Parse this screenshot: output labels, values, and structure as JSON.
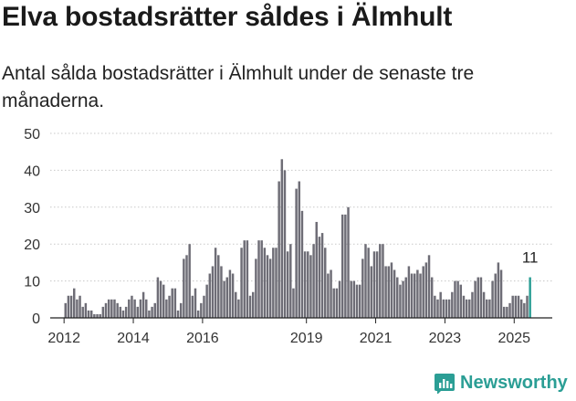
{
  "title": "Elva bostadsrätter såldes i Älmhult",
  "subtitle": "Antal sålda bostadsrätter i Älmhult under de senaste tre månaderna.",
  "brand": {
    "name": "Newsworthy",
    "icon": "newsworthy-logo-icon",
    "color": "#2b9e95"
  },
  "chart_data": {
    "type": "bar",
    "title": "",
    "xlabel": "",
    "ylabel": "",
    "ylim": [
      0,
      50
    ],
    "yticks": [
      0,
      10,
      20,
      30,
      40,
      50
    ],
    "xlim": [
      2011.6,
      2026.1
    ],
    "xticks": [
      2012,
      2014,
      2016,
      2019,
      2021,
      2023,
      2025
    ],
    "grid": "horizontal dotted",
    "bar_color": "#6e6d76",
    "highlight_color": "#2b9e95",
    "start": "2012-01",
    "values": [
      4,
      6,
      6,
      8,
      5,
      6,
      3,
      4,
      2,
      2,
      1,
      1,
      1,
      3,
      4,
      5,
      5,
      5,
      4,
      3,
      2,
      3,
      5,
      6,
      5,
      3,
      5,
      7,
      5,
      2,
      3,
      4,
      11,
      10,
      9,
      5,
      6,
      8,
      8,
      2,
      4,
      16,
      17,
      20,
      6,
      8,
      2,
      4,
      6,
      9,
      12,
      14,
      19,
      17,
      14,
      10,
      11,
      13,
      12,
      7,
      5,
      19,
      21,
      21,
      6,
      7,
      16,
      21,
      21,
      19,
      17,
      16,
      19,
      19,
      37,
      43,
      40,
      18,
      20,
      8,
      35,
      37,
      29,
      18,
      18,
      17,
      20,
      26,
      22,
      23,
      19,
      12,
      13,
      8,
      8,
      10,
      28,
      28,
      30,
      10,
      10,
      9,
      9,
      16,
      20,
      19,
      14,
      18,
      18,
      20,
      20,
      14,
      14,
      15,
      13,
      11,
      9,
      10,
      11,
      14,
      12,
      12,
      13,
      12,
      14,
      15,
      17,
      11,
      6,
      5,
      7,
      5,
      5,
      5,
      7,
      10,
      10,
      9,
      6,
      5,
      5,
      7,
      10,
      11,
      11,
      7,
      5,
      5,
      10,
      12,
      15,
      13,
      3,
      3,
      4,
      6,
      6,
      6,
      5,
      4,
      6,
      11
    ],
    "highlight": {
      "period": "2025-06",
      "value": 11,
      "label": "11"
    }
  }
}
